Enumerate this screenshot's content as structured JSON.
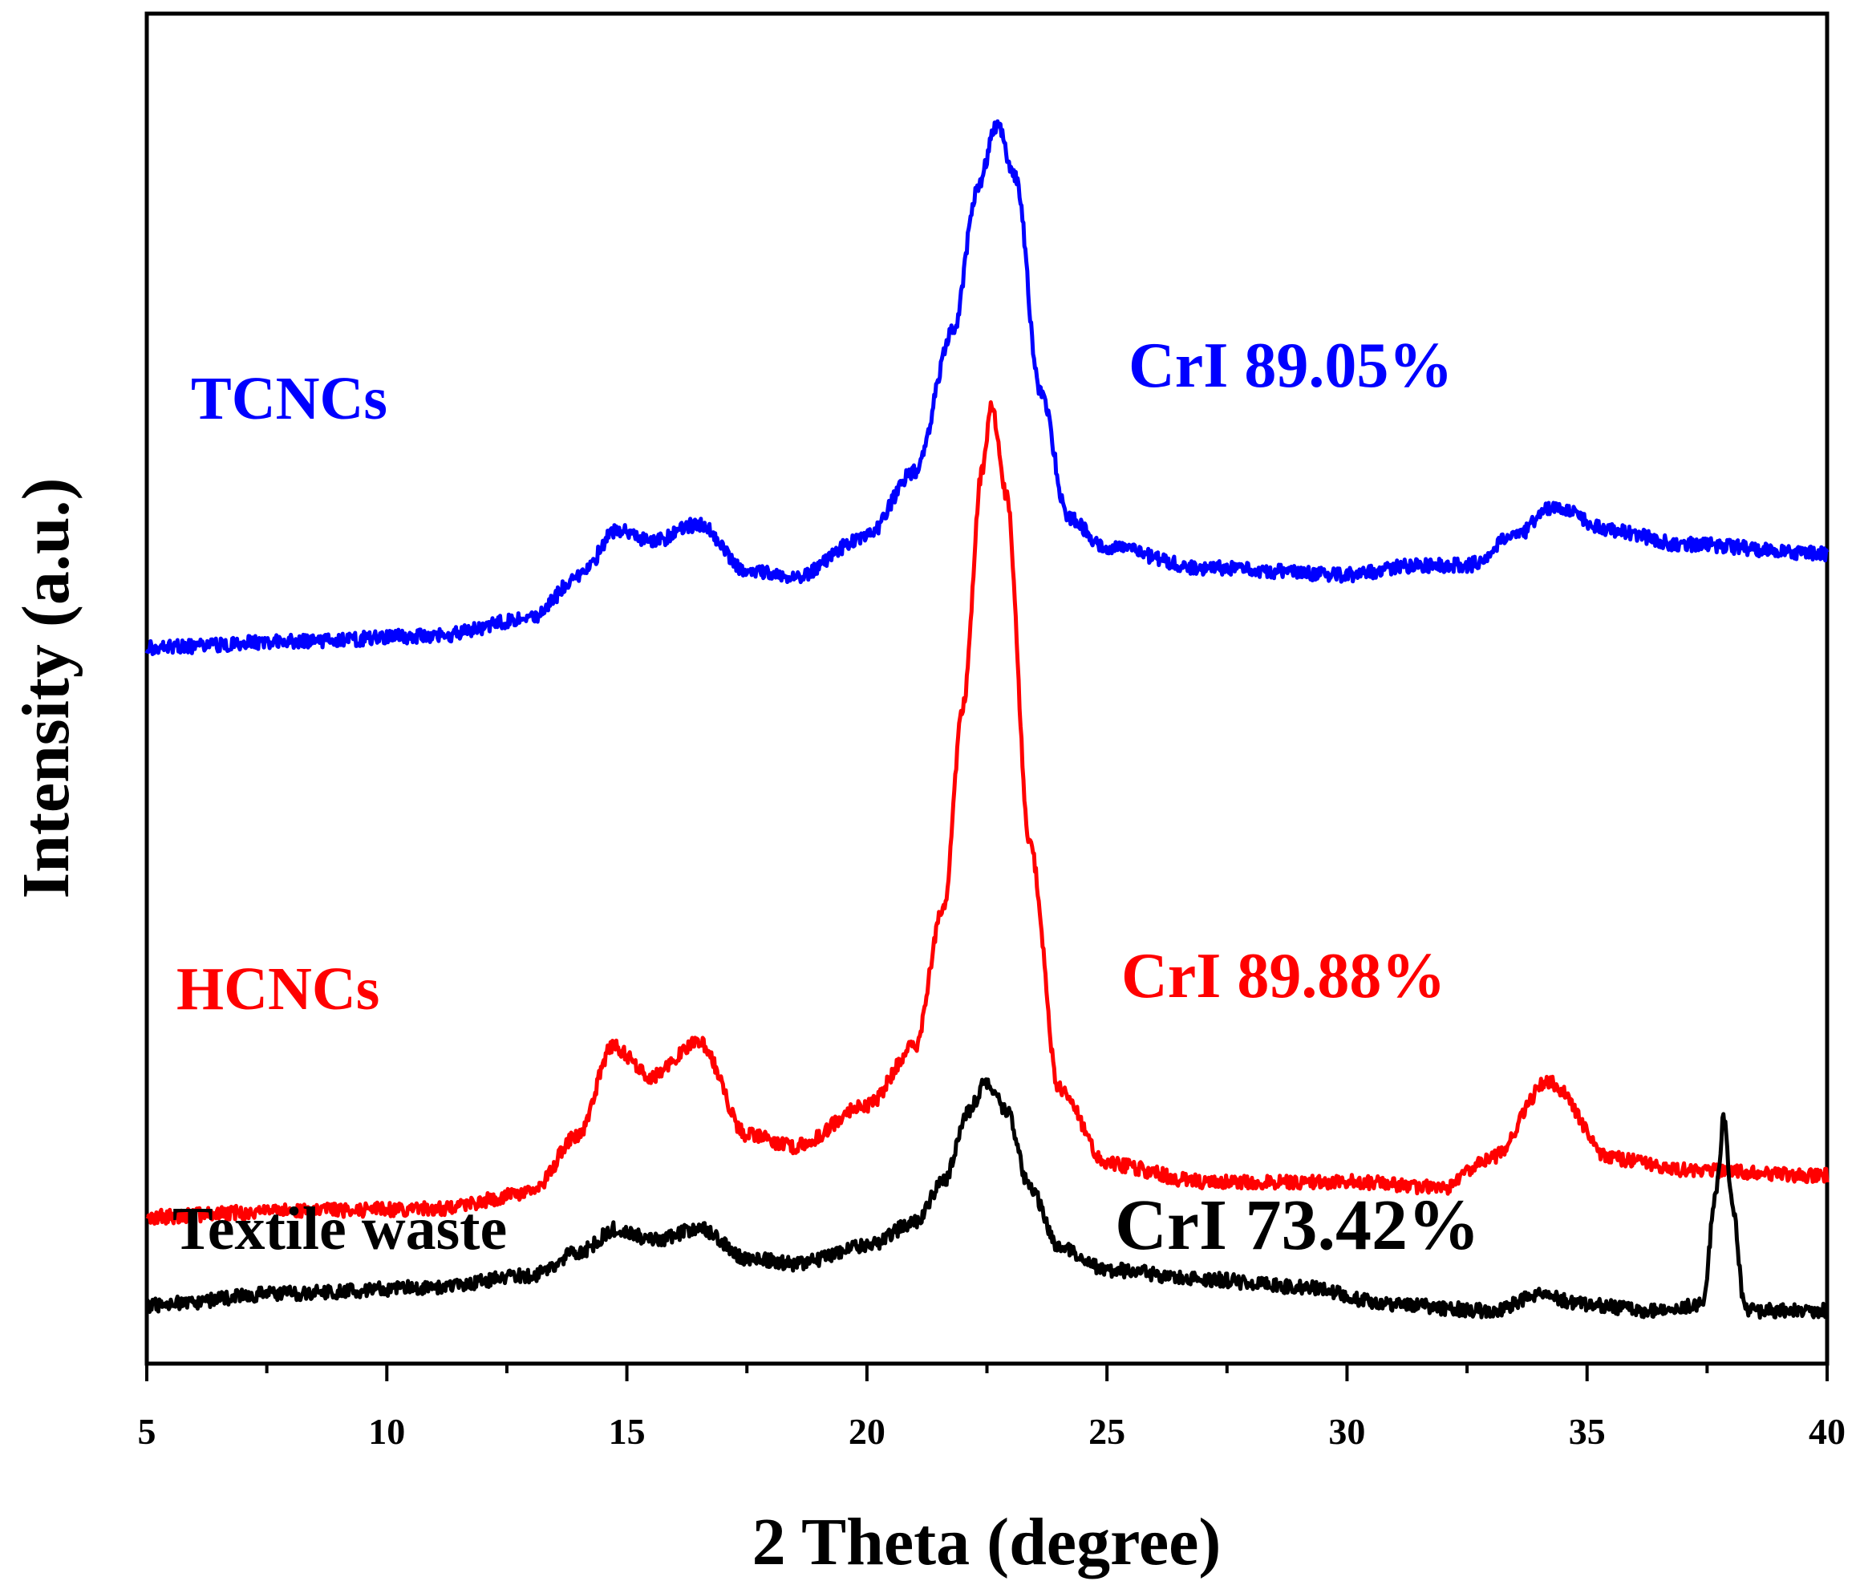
{
  "chart_data": {
    "type": "line",
    "title": "",
    "xlabel": "2 Theta (degree)",
    "ylabel": "Intensity (a.u.)",
    "xlim": [
      5,
      40
    ],
    "ylim": [
      0,
      11.5
    ],
    "x_ticks": [
      5,
      10,
      15,
      20,
      25,
      30,
      35,
      40
    ],
    "x_tick_labels": [
      "5",
      "10",
      "15",
      "20",
      "25",
      "30",
      "35",
      "40"
    ],
    "y_ticks_shown": false,
    "grid": false,
    "legend": "none",
    "series": [
      {
        "name": "TCNCs",
        "color": "#0000ff",
        "annotation": "CrI 89.05%",
        "x": [
          5,
          8,
          11,
          13,
          14,
          14.8,
          15.5,
          16.5,
          17.5,
          18.5,
          20,
          21,
          21.8,
          22.3,
          22.7,
          23.1,
          23.6,
          24.2,
          25,
          27,
          30,
          31.5,
          32.5,
          33.5,
          34.3,
          35.5,
          37,
          40
        ],
        "values": [
          6.1,
          6.15,
          6.2,
          6.35,
          6.7,
          7.1,
          7.0,
          7.15,
          6.75,
          6.7,
          7.05,
          7.6,
          8.8,
          10.0,
          10.55,
          10.1,
          8.3,
          7.2,
          6.95,
          6.78,
          6.72,
          6.8,
          6.8,
          7.05,
          7.3,
          7.1,
          6.98,
          6.9
        ]
      },
      {
        "name": "HCNCs",
        "color": "#ff0000",
        "annotation": "CrI 89.88%",
        "x": [
          5,
          8,
          11,
          13,
          14,
          14.7,
          15.5,
          16.5,
          17.5,
          18.5,
          20,
          21,
          21.6,
          22,
          22.4,
          22.6,
          22.9,
          23.4,
          24,
          25,
          27,
          30,
          32,
          33,
          34.2,
          35.5,
          37,
          40
        ],
        "values": [
          1.25,
          1.3,
          1.32,
          1.45,
          1.95,
          2.7,
          2.45,
          2.75,
          1.95,
          1.85,
          2.2,
          2.7,
          3.9,
          5.6,
          7.6,
          8.15,
          7.4,
          4.4,
          2.35,
          1.7,
          1.55,
          1.55,
          1.5,
          1.75,
          2.4,
          1.75,
          1.65,
          1.6
        ]
      },
      {
        "name": "Textile waste",
        "color": "#000000",
        "annotation": "CrI 73.42%",
        "x": [
          5,
          8,
          11,
          13,
          14,
          14.8,
          15.6,
          16.5,
          17.5,
          18.5,
          20,
          21,
          21.6,
          22.1,
          22.5,
          22.9,
          23.4,
          24,
          25,
          27,
          29,
          31,
          33,
          34,
          35,
          36.5,
          37.4,
          37.7,
          37.85,
          38.0,
          38.3,
          39,
          40
        ],
        "values": [
          0.5,
          0.6,
          0.65,
          0.75,
          0.95,
          1.15,
          1.05,
          1.15,
          0.9,
          0.85,
          1.0,
          1.2,
          1.55,
          2.15,
          2.4,
          2.15,
          1.5,
          1.0,
          0.8,
          0.72,
          0.65,
          0.5,
          0.45,
          0.58,
          0.5,
          0.45,
          0.5,
          1.5,
          2.1,
          1.4,
          0.45,
          0.45,
          0.45
        ]
      }
    ]
  }
}
